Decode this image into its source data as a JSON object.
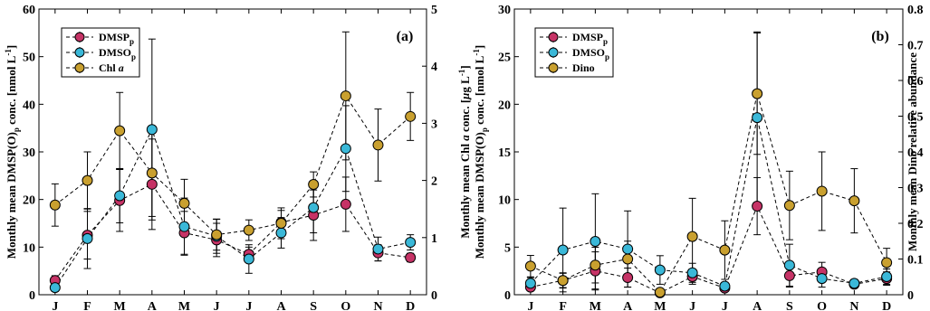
{
  "chart_data": [
    {
      "type": "line",
      "panel_label": "(a)",
      "categories": [
        "J",
        "F",
        "M",
        "A",
        "M",
        "J",
        "J",
        "A",
        "S",
        "O",
        "N",
        "D"
      ],
      "ylabel": {
        "main": "Monthly mean DMSP(O)",
        "sub": "p",
        "tail": " conc. [nmol L",
        "sup": "-1",
        "end": "]"
      },
      "ylabel_right": {
        "main": "Monthly mean Chl ",
        "ital": "a",
        "tail": " conc. [",
        "mu": "μ",
        "unit": "g L",
        "sup": "-1",
        "end": "]"
      },
      "ylim": [
        0,
        60
      ],
      "yticks": [
        "0",
        "10",
        "20",
        "30",
        "40",
        "50",
        "60"
      ],
      "ylim_right": [
        0,
        5
      ],
      "yticks_right": [
        "0",
        "1",
        "2",
        "3",
        "4",
        "5"
      ],
      "series": [
        {
          "name": "DMSP",
          "sub": "p",
          "ital": "",
          "color": "#c63366",
          "axis": "left",
          "values": [
            3,
            12.5,
            19.8,
            23.2,
            13.0,
            11.5,
            8.5,
            15.2,
            16.7,
            19.0,
            8.8,
            7.8
          ],
          "err": [
            1.0,
            5.0,
            6.5,
            9.5,
            4.5,
            3.5,
            1.5,
            2.5,
            5.3,
            5.7,
            1.7,
            0.9
          ]
        },
        {
          "name": "DMSO",
          "sub": "p",
          "ital": "",
          "color": "#3ab8d8",
          "axis": "left",
          "values": [
            1.5,
            11.8,
            20.8,
            34.7,
            14.3,
            12.3,
            7.5,
            13.0,
            18.3,
            30.7,
            9.6,
            11.0
          ],
          "err": [
            0.8,
            6.3,
            5.7,
            19.0,
            6.0,
            3.6,
            3.0,
            3.2,
            5.3,
            9.0,
            2.5,
            1.6
          ]
        },
        {
          "name": "Chl ",
          "sub": "",
          "ital": "a",
          "color": "#c9a02f",
          "axis": "right",
          "values": [
            1.57,
            2.0,
            2.87,
            2.13,
            1.6,
            1.05,
            1.13,
            1.25,
            1.93,
            3.48,
            2.62,
            3.12
          ],
          "err": [
            0.37,
            0.5,
            0.67,
            0.76,
            0.42,
            0.27,
            0.18,
            0.27,
            0.22,
            1.12,
            0.63,
            0.42
          ]
        }
      ]
    },
    {
      "type": "line",
      "panel_label": "(b)",
      "categories": [
        "J",
        "F",
        "M",
        "A",
        "M",
        "J",
        "J",
        "A",
        "S",
        "O",
        "N",
        "D"
      ],
      "ylabel": {
        "main": "Monthly mean DMSP(O)",
        "sub": "p",
        "tail": " conc. [nmol L",
        "sup": "-1",
        "end": "]"
      },
      "ylabel_right": {
        "main": "Monthly mean Dino relative abundance"
      },
      "ylim": [
        0,
        30
      ],
      "yticks": [
        "0",
        "5",
        "10",
        "15",
        "20",
        "25",
        "30"
      ],
      "ylim_right": [
        0,
        0.8
      ],
      "yticks_right": [
        "0",
        "0.1",
        "0.2",
        "0.3",
        "0.4",
        "0.5",
        "0.6",
        "0.7",
        "0.8"
      ],
      "series": [
        {
          "name": "DMSP",
          "sub": "p",
          "ital": "",
          "color": "#c63366",
          "axis": "left",
          "values": [
            0.8,
            1.5,
            2.5,
            1.8,
            0.2,
            1.9,
            0.7,
            9.3,
            2.0,
            2.4,
            1.1,
            1.7
          ],
          "err": [
            0.4,
            0.8,
            2.0,
            1.0,
            0.1,
            0.8,
            0.3,
            3.0,
            1.2,
            1.0,
            0.4,
            0.7
          ]
        },
        {
          "name": "DMSO",
          "sub": "p",
          "ital": "",
          "color": "#3ab8d8",
          "axis": "left",
          "values": [
            1.2,
            4.7,
            5.6,
            4.8,
            2.6,
            2.3,
            0.9,
            18.6,
            3.1,
            1.7,
            1.2,
            1.9
          ],
          "err": [
            0.6,
            4.4,
            5.0,
            4.0,
            1.5,
            1.0,
            0.4,
            9.0,
            2.2,
            0.9,
            0.4,
            0.8
          ]
        },
        {
          "name": "Dino",
          "sub": "",
          "ital": "",
          "color": "#c9a02f",
          "axis": "right",
          "values": [
            0.08,
            0.04,
            0.083,
            0.1,
            0.007,
            0.163,
            0.125,
            0.563,
            0.25,
            0.29,
            0.263,
            0.09
          ],
          "err": [
            0.03,
            0.02,
            0.05,
            0.05,
            0.005,
            0.107,
            0.082,
            0.17,
            0.096,
            0.11,
            0.09,
            0.04
          ]
        }
      ]
    }
  ]
}
